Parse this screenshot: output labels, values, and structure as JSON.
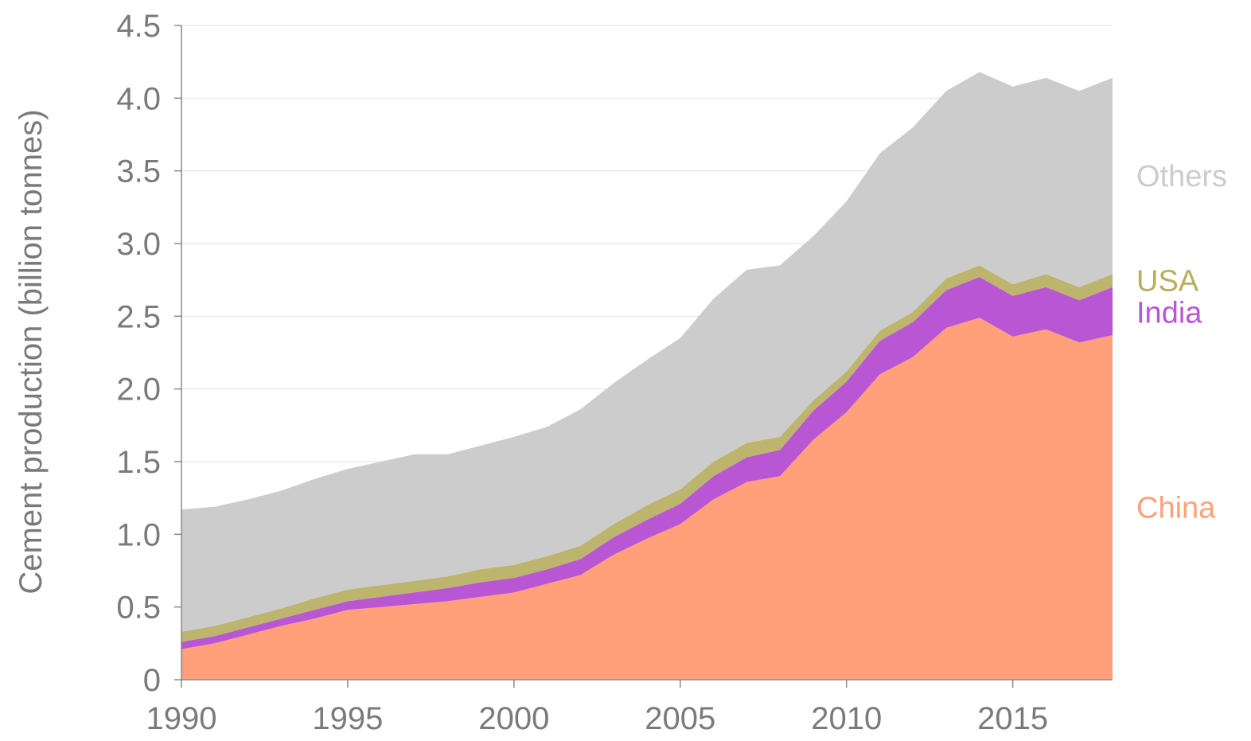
{
  "chart_data": {
    "type": "area",
    "stacked": true,
    "title": "",
    "xlabel": "",
    "ylabel": "Cement production (billion tonnes)",
    "ylim": [
      0,
      4.5
    ],
    "xlim": [
      1990,
      2018
    ],
    "grid": true,
    "legend": "inline-right",
    "xticks": [
      "1990",
      "1995",
      "2000",
      "2005",
      "2010",
      "2015"
    ],
    "yticks": [
      "0",
      "0.5",
      "1.0",
      "1.5",
      "2.0",
      "2.5",
      "3.0",
      "3.5",
      "4.0",
      "4.5"
    ],
    "x": [
      1990,
      1991,
      1992,
      1993,
      1994,
      1995,
      1996,
      1997,
      1998,
      1999,
      2000,
      2001,
      2002,
      2003,
      2004,
      2005,
      2006,
      2007,
      2008,
      2009,
      2010,
      2011,
      2012,
      2013,
      2014,
      2015,
      2016,
      2017,
      2018
    ],
    "series": [
      {
        "name": "China",
        "color": "#ffa07a",
        "values": [
          0.21,
          0.25,
          0.31,
          0.37,
          0.42,
          0.48,
          0.5,
          0.52,
          0.54,
          0.57,
          0.6,
          0.66,
          0.72,
          0.86,
          0.97,
          1.07,
          1.24,
          1.36,
          1.4,
          1.65,
          1.84,
          2.1,
          2.22,
          2.42,
          2.49,
          2.36,
          2.41,
          2.32,
          2.37
        ]
      },
      {
        "name": "India",
        "color": "#b956d4",
        "values": [
          0.05,
          0.05,
          0.05,
          0.05,
          0.06,
          0.06,
          0.07,
          0.08,
          0.09,
          0.1,
          0.1,
          0.1,
          0.11,
          0.12,
          0.13,
          0.14,
          0.16,
          0.17,
          0.18,
          0.2,
          0.21,
          0.23,
          0.24,
          0.26,
          0.28,
          0.28,
          0.29,
          0.29,
          0.33
        ]
      },
      {
        "name": "USA",
        "color": "#bdb46d",
        "values": [
          0.07,
          0.07,
          0.07,
          0.07,
          0.08,
          0.08,
          0.08,
          0.08,
          0.08,
          0.09,
          0.09,
          0.09,
          0.09,
          0.09,
          0.1,
          0.1,
          0.1,
          0.1,
          0.09,
          0.07,
          0.07,
          0.07,
          0.07,
          0.08,
          0.08,
          0.08,
          0.09,
          0.09,
          0.09
        ]
      },
      {
        "name": "Others",
        "color": "#cccccc",
        "values": [
          0.84,
          0.82,
          0.81,
          0.81,
          0.82,
          0.83,
          0.85,
          0.87,
          0.84,
          0.85,
          0.88,
          0.89,
          0.94,
          0.97,
          1.0,
          1.04,
          1.12,
          1.19,
          1.18,
          1.13,
          1.17,
          1.22,
          1.27,
          1.29,
          1.33,
          1.36,
          1.35,
          1.35,
          1.35
        ]
      }
    ]
  }
}
